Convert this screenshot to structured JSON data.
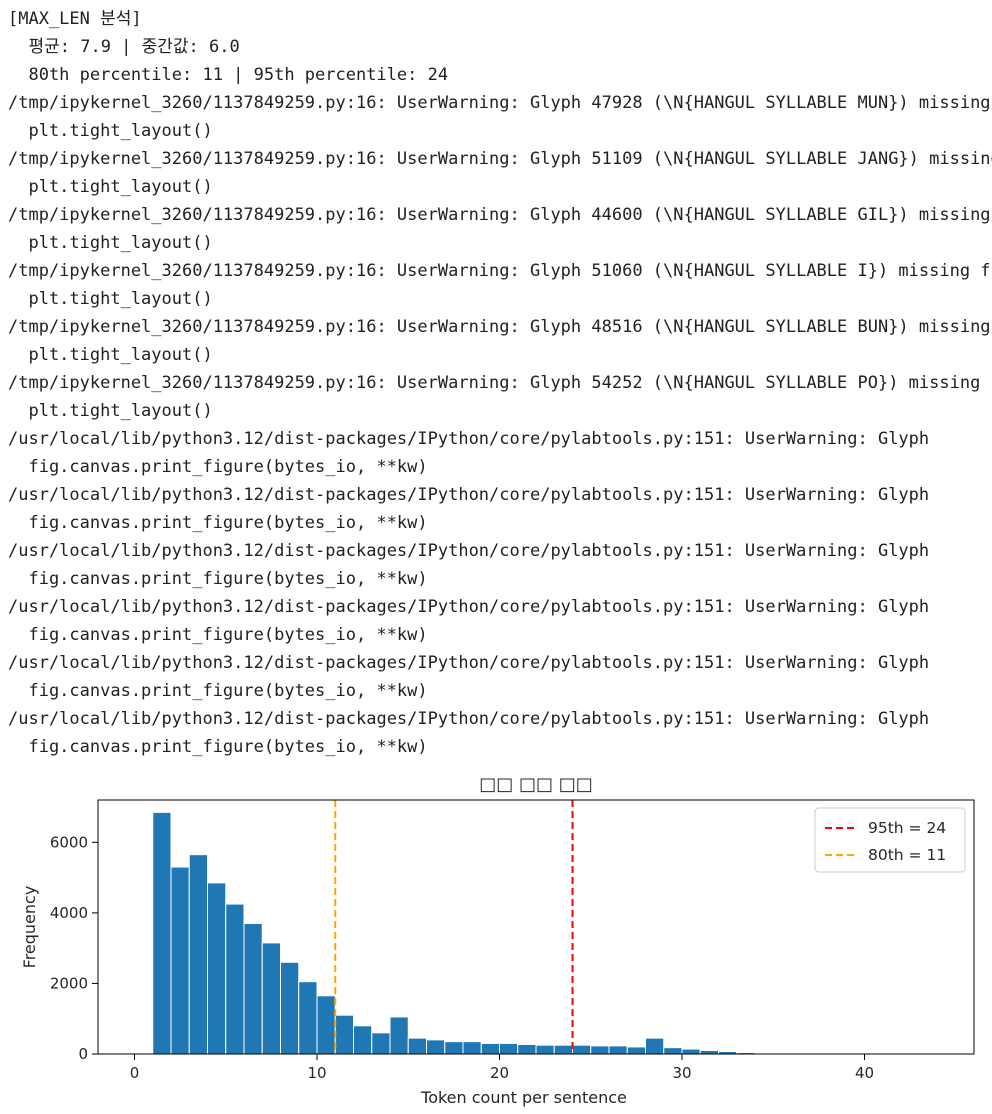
{
  "cell_output": {
    "log_lines": [
      "[MAX_LEN 분석]",
      "  평균: 7.9 | 중간값: 6.0",
      "  80th percentile: 11 | 95th percentile: 24",
      "/tmp/ipykernel_3260/1137849259.py:16: UserWarning: Glyph 47928 (\\N{HANGUL SYLLABLE MUN}) missing from font(s) DejaVu Sans.",
      "  plt.tight_layout()",
      "/tmp/ipykernel_3260/1137849259.py:16: UserWarning: Glyph 51109 (\\N{HANGUL SYLLABLE JANG}) missing from font(s) DejaVu Sans.",
      "  plt.tight_layout()",
      "/tmp/ipykernel_3260/1137849259.py:16: UserWarning: Glyph 44600 (\\N{HANGUL SYLLABLE GIL}) missing from font(s) DejaVu Sans.",
      "  plt.tight_layout()",
      "/tmp/ipykernel_3260/1137849259.py:16: UserWarning: Glyph 51060 (\\N{HANGUL SYLLABLE I}) missing from font(s) DejaVu Sans.",
      "  plt.tight_layout()",
      "/tmp/ipykernel_3260/1137849259.py:16: UserWarning: Glyph 48516 (\\N{HANGUL SYLLABLE BUN}) missing from font(s) DejaVu Sans.",
      "  plt.tight_layout()",
      "/tmp/ipykernel_3260/1137849259.py:16: UserWarning: Glyph 54252 (\\N{HANGUL SYLLABLE PO}) missing from font(s) DejaVu Sans.",
      "  plt.tight_layout()",
      "/usr/local/lib/python3.12/dist-packages/IPython/core/pylabtools.py:151: UserWarning: Glyph",
      "  fig.canvas.print_figure(bytes_io, **kw)",
      "/usr/local/lib/python3.12/dist-packages/IPython/core/pylabtools.py:151: UserWarning: Glyph",
      "  fig.canvas.print_figure(bytes_io, **kw)",
      "/usr/local/lib/python3.12/dist-packages/IPython/core/pylabtools.py:151: UserWarning: Glyph",
      "  fig.canvas.print_figure(bytes_io, **kw)",
      "/usr/local/lib/python3.12/dist-packages/IPython/core/pylabtools.py:151: UserWarning: Glyph",
      "  fig.canvas.print_figure(bytes_io, **kw)",
      "/usr/local/lib/python3.12/dist-packages/IPython/core/pylabtools.py:151: UserWarning: Glyph",
      "  fig.canvas.print_figure(bytes_io, **kw)",
      "/usr/local/lib/python3.12/dist-packages/IPython/core/pylabtools.py:151: UserWarning: Glyph",
      "  fig.canvas.print_figure(bytes_io, **kw)"
    ]
  },
  "chart_data": {
    "type": "bar",
    "title": "□□ □□ □□",
    "xlabel": "Token count per sentence",
    "ylabel": "Frequency",
    "xlim": [
      -2,
      46
    ],
    "ylim": [
      0,
      7200
    ],
    "xticks": [
      0,
      10,
      20,
      30,
      40
    ],
    "yticks": [
      0,
      2000,
      4000,
      6000
    ],
    "grid": false,
    "bar_color": "#1f77b4",
    "bin_width": 1,
    "bins": [
      {
        "x": 1,
        "value": 6850
      },
      {
        "x": 2,
        "value": 5300
      },
      {
        "x": 3,
        "value": 5650
      },
      {
        "x": 4,
        "value": 4850
      },
      {
        "x": 5,
        "value": 4250
      },
      {
        "x": 6,
        "value": 3700
      },
      {
        "x": 7,
        "value": 3150
      },
      {
        "x": 8,
        "value": 2600
      },
      {
        "x": 9,
        "value": 2050
      },
      {
        "x": 10,
        "value": 1650
      },
      {
        "x": 11,
        "value": 1100
      },
      {
        "x": 12,
        "value": 800
      },
      {
        "x": 13,
        "value": 600
      },
      {
        "x": 14,
        "value": 1050
      },
      {
        "x": 15,
        "value": 450
      },
      {
        "x": 16,
        "value": 400
      },
      {
        "x": 17,
        "value": 350
      },
      {
        "x": 18,
        "value": 350
      },
      {
        "x": 19,
        "value": 300
      },
      {
        "x": 20,
        "value": 300
      },
      {
        "x": 21,
        "value": 270
      },
      {
        "x": 22,
        "value": 250
      },
      {
        "x": 23,
        "value": 250
      },
      {
        "x": 24,
        "value": 250
      },
      {
        "x": 25,
        "value": 230
      },
      {
        "x": 26,
        "value": 230
      },
      {
        "x": 27,
        "value": 200
      },
      {
        "x": 28,
        "value": 450
      },
      {
        "x": 29,
        "value": 180
      },
      {
        "x": 30,
        "value": 140
      },
      {
        "x": 31,
        "value": 100
      },
      {
        "x": 32,
        "value": 70
      },
      {
        "x": 33,
        "value": 40
      },
      {
        "x": 34,
        "value": 20
      },
      {
        "x": 35,
        "value": 10
      },
      {
        "x": 36,
        "value": 8
      },
      {
        "x": 37,
        "value": 6
      },
      {
        "x": 38,
        "value": 5
      },
      {
        "x": 39,
        "value": 4
      },
      {
        "x": 40,
        "value": 3
      },
      {
        "x": 41,
        "value": 3
      },
      {
        "x": 42,
        "value": 2
      },
      {
        "x": 43,
        "value": 2
      }
    ],
    "vlines": [
      {
        "x": 24,
        "color": "#ff0000",
        "label": "95th = 24"
      },
      {
        "x": 11,
        "color": "#ffa500",
        "label": "80th = 11"
      }
    ],
    "legend_position": "top-right"
  }
}
